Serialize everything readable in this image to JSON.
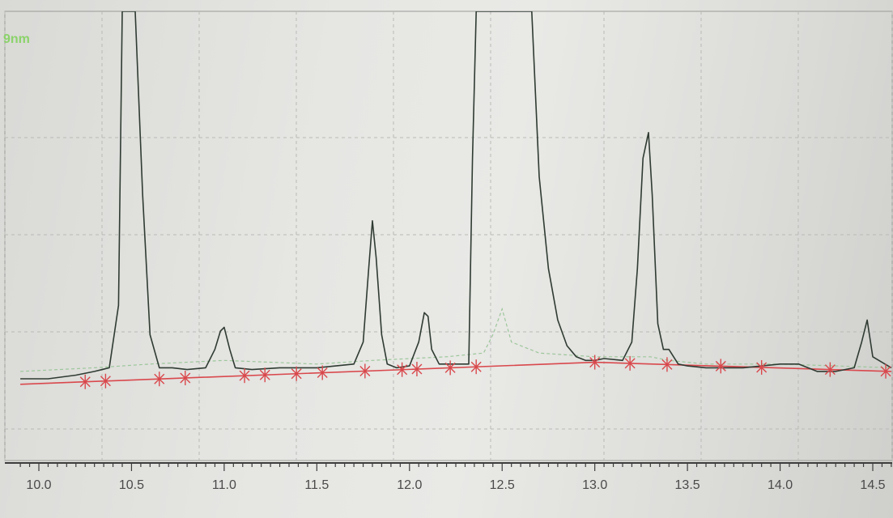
{
  "channel_label": "9nm",
  "colors": {
    "signal": "#2f3b33",
    "secondary_trace": "#9cc79a",
    "baseline": "#d9484c",
    "grid": "#b9b9b6",
    "axis": "#3c3c3c",
    "label_green": "#8bd36a"
  },
  "chart_data": {
    "type": "line",
    "title": "",
    "xlabel": "",
    "ylabel": "",
    "xlim": [
      9.9,
      14.6
    ],
    "ylim": [
      -0.04,
      1.0
    ],
    "grid": true,
    "x_ticks": [
      "10.0",
      "10.5",
      "11.0",
      "11.5",
      "12.0",
      "12.5",
      "13.0",
      "13.5",
      "14.0",
      "14.5"
    ],
    "signal_trace": {
      "x": [
        9.9,
        10.05,
        10.2,
        10.3,
        10.38,
        10.43,
        10.45,
        10.48,
        10.52,
        10.56,
        10.6,
        10.65,
        10.72,
        10.8,
        10.9,
        10.95,
        10.98,
        11.0,
        11.03,
        11.06,
        11.15,
        11.3,
        11.5,
        11.7,
        11.75,
        11.78,
        11.8,
        11.82,
        11.85,
        11.88,
        11.93,
        12.0,
        12.05,
        12.08,
        12.1,
        12.12,
        12.16,
        12.25,
        12.32,
        12.34,
        12.36,
        12.38,
        12.4,
        12.5,
        12.6,
        12.66,
        12.7,
        12.75,
        12.8,
        12.85,
        12.9,
        12.95,
        13.0,
        13.05,
        13.15,
        13.2,
        13.23,
        13.26,
        13.29,
        13.31,
        13.34,
        13.37,
        13.4,
        13.45,
        13.5,
        13.6,
        13.8,
        14.0,
        14.1,
        14.2,
        14.3,
        14.4,
        14.44,
        14.47,
        14.5,
        14.6
      ],
      "y": [
        0.0,
        0.0,
        0.01,
        0.02,
        0.03,
        0.2,
        1.0,
        1.0,
        1.0,
        0.5,
        0.12,
        0.03,
        0.03,
        0.025,
        0.03,
        0.08,
        0.13,
        0.14,
        0.08,
        0.03,
        0.025,
        0.03,
        0.03,
        0.04,
        0.1,
        0.3,
        0.43,
        0.33,
        0.12,
        0.04,
        0.03,
        0.035,
        0.1,
        0.18,
        0.17,
        0.08,
        0.04,
        0.04,
        0.04,
        0.6,
        1.0,
        1.0,
        1.0,
        1.0,
        1.0,
        1.0,
        0.55,
        0.3,
        0.16,
        0.09,
        0.06,
        0.05,
        0.05,
        0.055,
        0.05,
        0.1,
        0.3,
        0.6,
        0.67,
        0.5,
        0.15,
        0.08,
        0.08,
        0.04,
        0.035,
        0.03,
        0.03,
        0.04,
        0.04,
        0.02,
        0.02,
        0.03,
        0.1,
        0.16,
        0.06,
        0.03
      ]
    },
    "secondary_trace": {
      "x": [
        9.9,
        10.3,
        10.6,
        11.0,
        11.5,
        11.8,
        12.2,
        12.4,
        12.45,
        12.5,
        12.55,
        12.7,
        13.0,
        13.3,
        13.4,
        13.6,
        14.0,
        14.3,
        14.6
      ],
      "y": [
        0.02,
        0.03,
        0.04,
        0.05,
        0.04,
        0.05,
        0.06,
        0.07,
        0.12,
        0.19,
        0.1,
        0.07,
        0.06,
        0.06,
        0.05,
        0.04,
        0.04,
        0.035,
        0.03
      ],
      "stroke_dash": "4,3"
    },
    "baseline": {
      "x": [
        9.9,
        13.0,
        14.6
      ],
      "y": [
        -0.015,
        0.045,
        0.02
      ]
    },
    "integration_markers_x": [
      10.25,
      10.36,
      10.65,
      10.79,
      11.11,
      11.22,
      11.39,
      11.53,
      11.76,
      11.96,
      12.04,
      12.22,
      12.36,
      13.0,
      13.19,
      13.39,
      13.68,
      13.9,
      14.27,
      14.57
    ]
  }
}
